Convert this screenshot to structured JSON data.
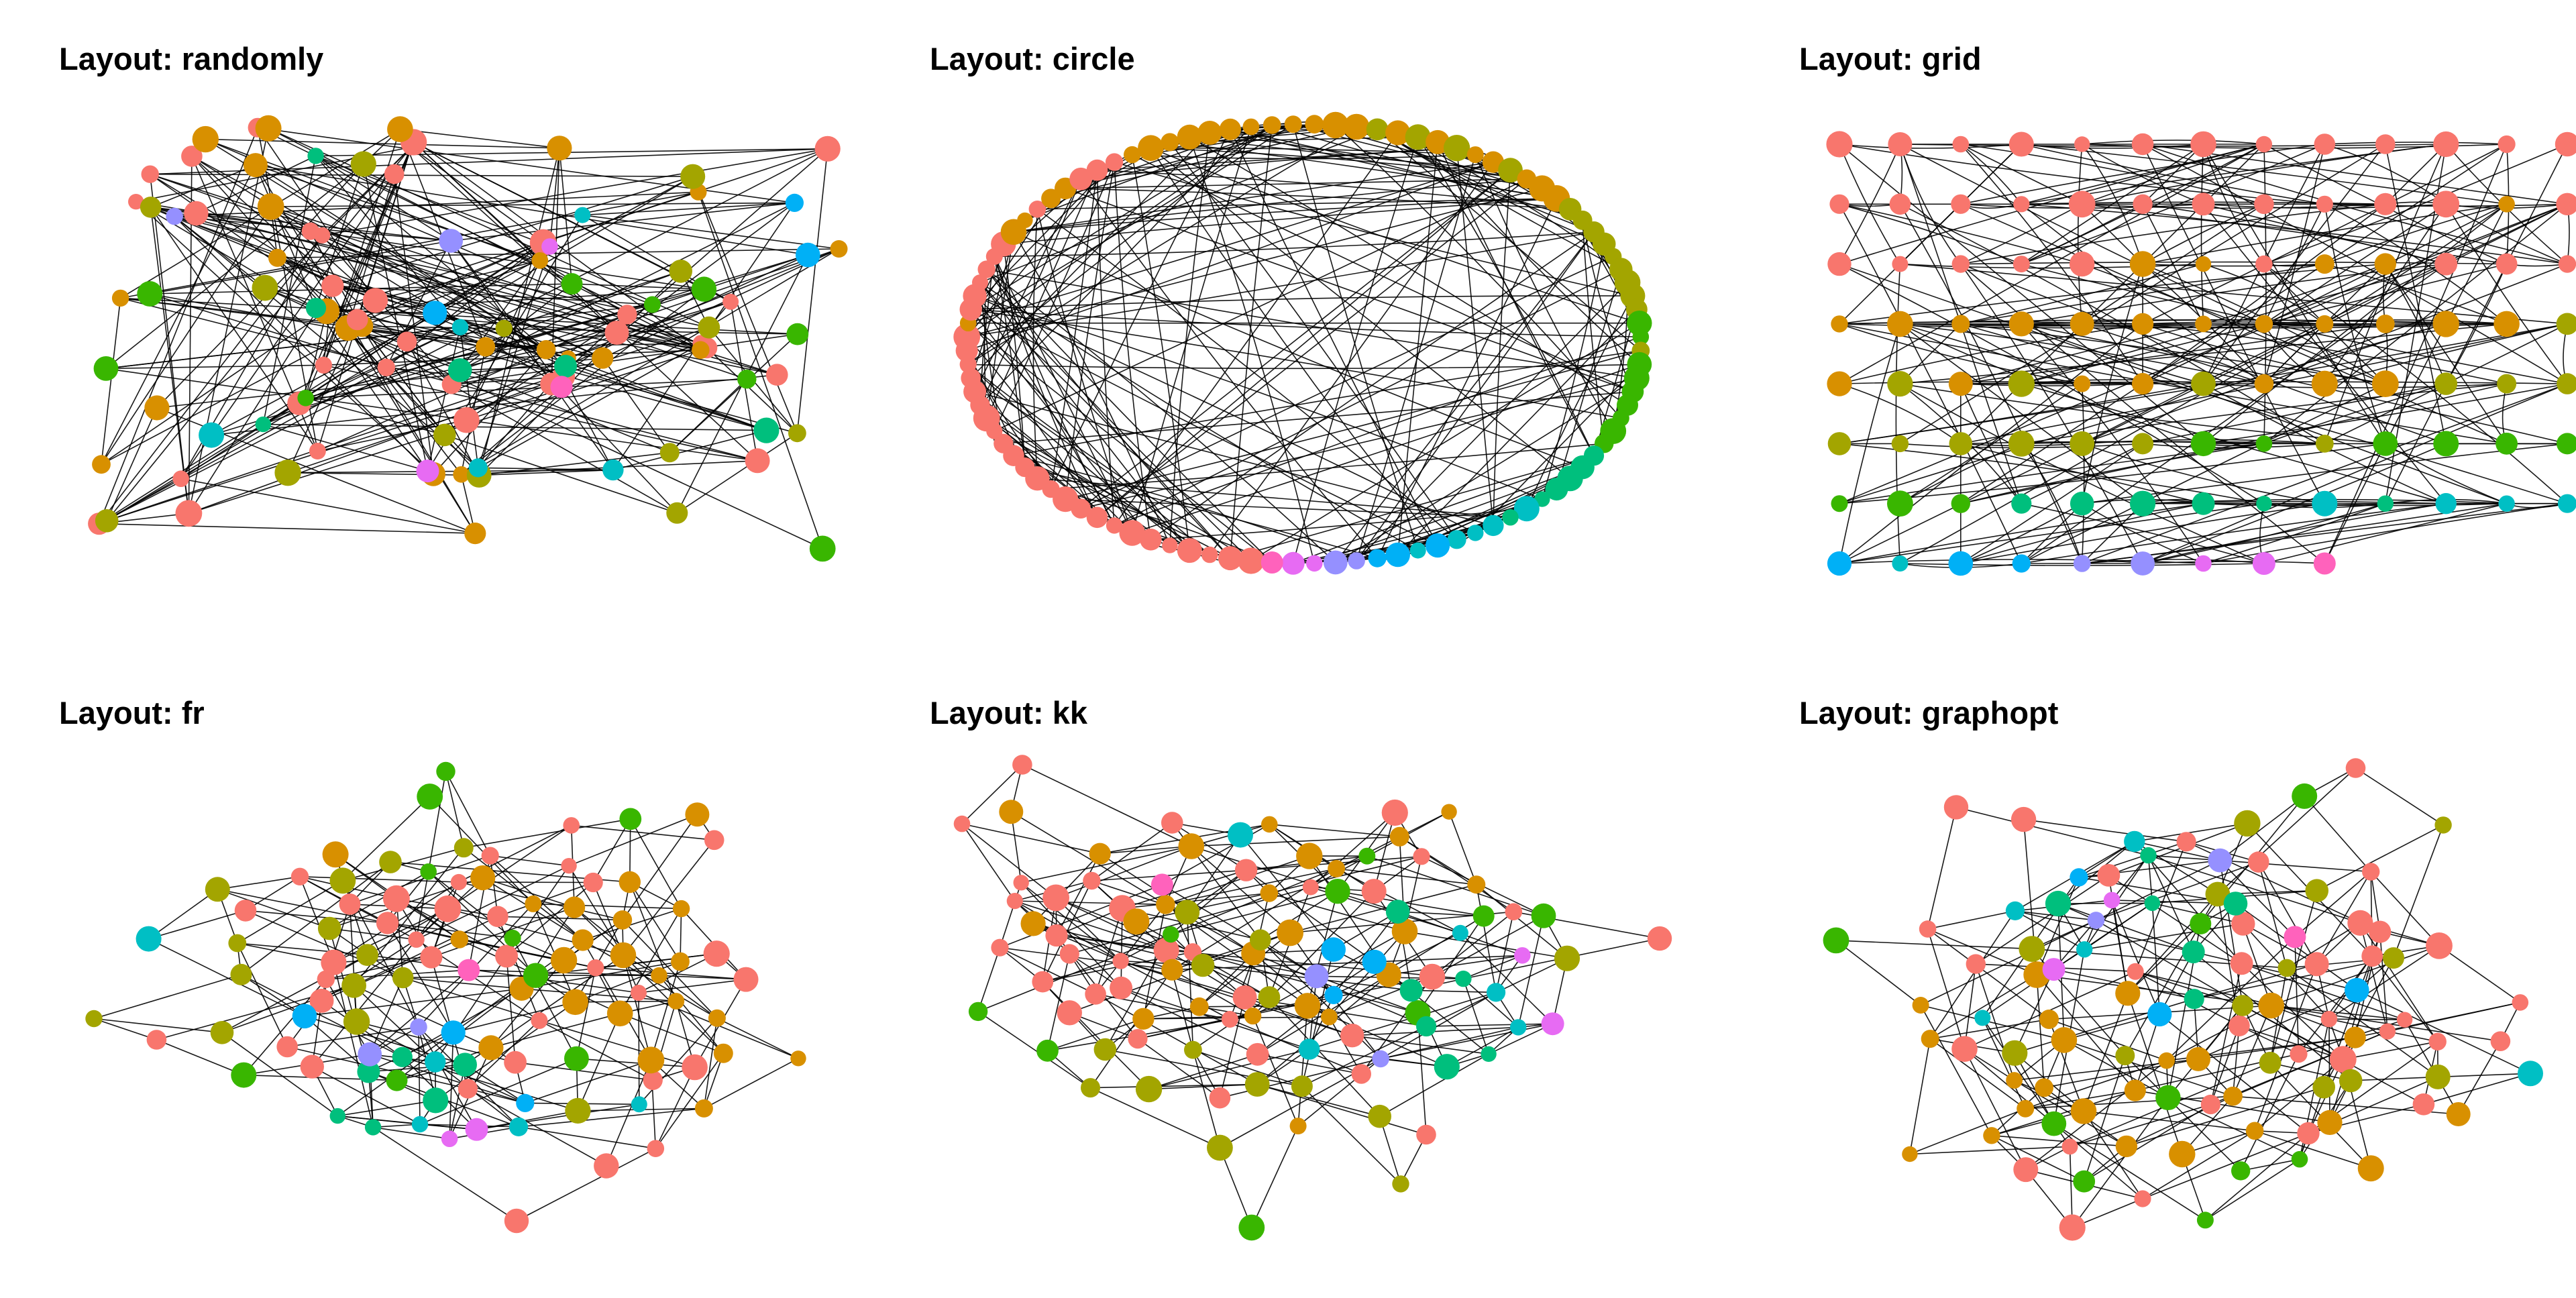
{
  "panels": [
    {
      "title": "Layout: randomly",
      "layout": "randomly"
    },
    {
      "title": "Layout: circle",
      "layout": "circle"
    },
    {
      "title": "Layout: grid",
      "layout": "grid"
    },
    {
      "title": "Layout: fr",
      "layout": "fr"
    },
    {
      "title": "Layout: kk",
      "layout": "kk"
    },
    {
      "title": "Layout: graphopt",
      "layout": "graphopt"
    }
  ],
  "graph": {
    "node_count": 100,
    "edge_color": "#000000",
    "group_colors": [
      "#F8766D",
      "#D89000",
      "#A3A500",
      "#39B600",
      "#00BF7D",
      "#00BFC4",
      "#00B0F6",
      "#9590FF",
      "#E76BF3",
      "#FF62BC"
    ]
  }
}
